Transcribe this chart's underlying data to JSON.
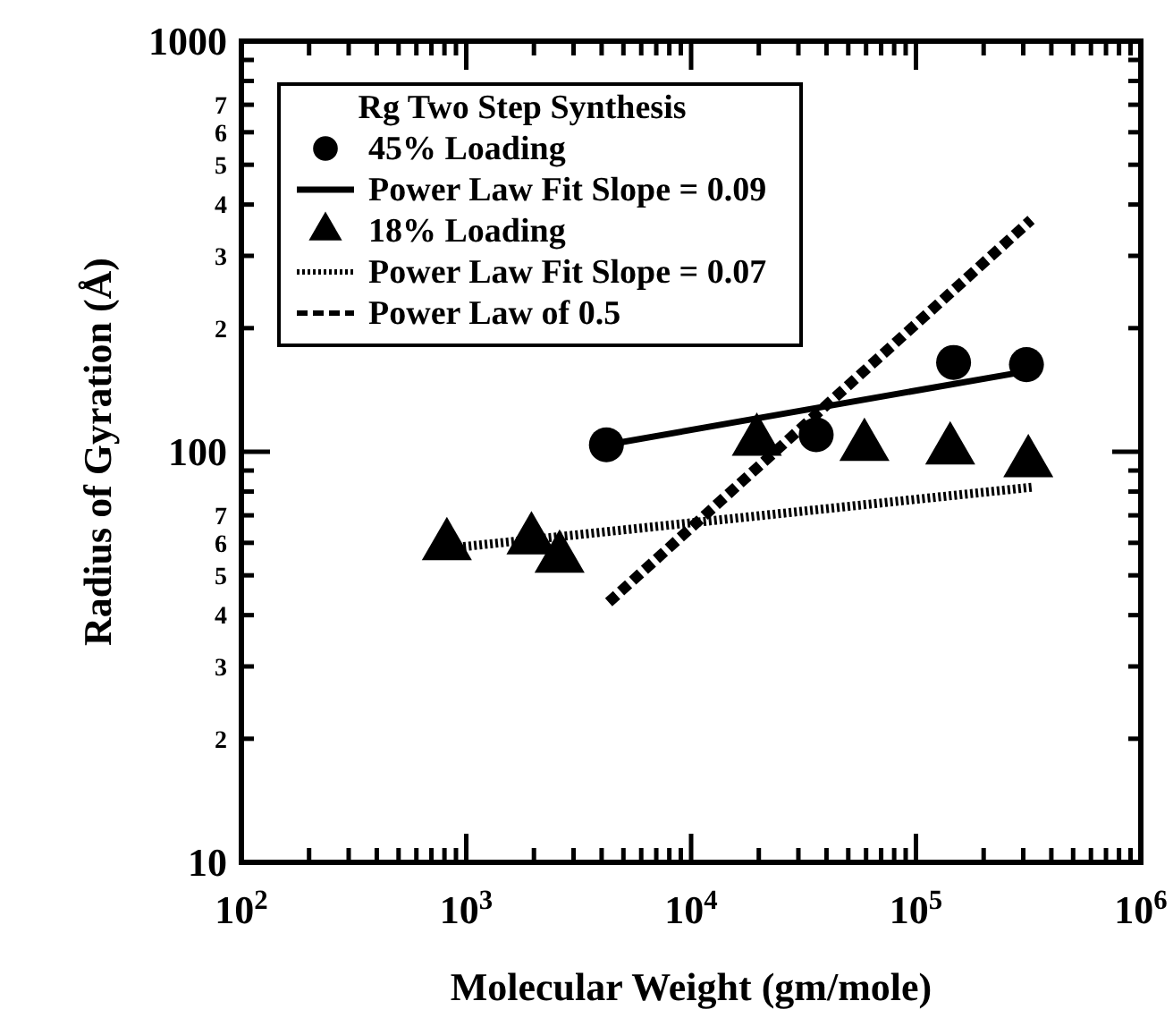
{
  "chart_data": {
    "type": "scatter",
    "xlabel": "Molecular Weight (gm/mole)",
    "ylabel": "Radius of Gyration (Å)",
    "legend_title": "Rg Two Step Synthesis",
    "log": "xy",
    "legend": "top left",
    "grid": false,
    "xlim": [
      100,
      1000000
    ],
    "ylim": [
      10,
      1000
    ],
    "xticks": [
      {
        "value": 100,
        "label": "10$^{2}$"
      },
      {
        "value": 200,
        "label": null
      },
      {
        "value": 300,
        "label": null
      },
      {
        "value": 400,
        "label": null
      },
      {
        "value": 500,
        "label": null
      },
      {
        "value": 600,
        "label": null
      },
      {
        "value": 700,
        "label": null
      },
      {
        "value": 800,
        "label": null
      },
      {
        "value": 900,
        "label": null
      },
      {
        "value": 1000,
        "label": "10$^{3}$"
      },
      {
        "value": 2000,
        "label": null
      },
      {
        "value": 3000,
        "label": null
      },
      {
        "value": 4000,
        "label": null
      },
      {
        "value": 5000,
        "label": null
      },
      {
        "value": 6000,
        "label": null
      },
      {
        "value": 7000,
        "label": null
      },
      {
        "value": 8000,
        "label": null
      },
      {
        "value": 9000,
        "label": null
      },
      {
        "value": 10000,
        "label": "10$^{4}$"
      },
      {
        "value": 20000,
        "label": null
      },
      {
        "value": 30000,
        "label": null
      },
      {
        "value": 40000,
        "label": null
      },
      {
        "value": 50000,
        "label": null
      },
      {
        "value": 60000,
        "label": null
      },
      {
        "value": 70000,
        "label": null
      },
      {
        "value": 80000,
        "label": null
      },
      {
        "value": 90000,
        "label": null
      },
      {
        "value": 100000,
        "label": "10$^{5}$"
      },
      {
        "value": 200000,
        "label": null
      },
      {
        "value": 300000,
        "label": null
      },
      {
        "value": 400000,
        "label": null
      },
      {
        "value": 500000,
        "label": null
      },
      {
        "value": 600000,
        "label": null
      },
      {
        "value": 700000,
        "label": null
      },
      {
        "value": 800000,
        "label": null
      },
      {
        "value": 900000,
        "label": null
      },
      {
        "value": 1000000,
        "label": "10$^{6}$"
      }
    ],
    "yticks": [
      10,
      {
        "value": 20,
        "label": null
      },
      {
        "value": 30,
        "label": null
      },
      {
        "value": 40,
        "label": null
      },
      {
        "value": 50,
        "label": null
      },
      {
        "value": 60,
        "label": null
      },
      {
        "value": 70,
        "label": null
      },
      {
        "value": 80,
        "label": null
      },
      {
        "value": 90,
        "label": null
      },
      100,
      {
        "value": 200,
        "label": null
      },
      {
        "value": 300,
        "label": null
      },
      {
        "value": 400,
        "label": null
      },
      {
        "value": 500,
        "label": null
      },
      {
        "value": 600,
        "label": null
      },
      {
        "value": 700,
        "label": null
      },
      {
        "value": 800,
        "label": null
      },
      {
        "value": 900,
        "label": null
      },
      1000
    ],
    "annotations": [
      "2",
      "3",
      "4",
      "5",
      "6",
      "7",
      "2",
      "3",
      "4",
      "5",
      "6",
      "7"
    ],
    "series": [
      {
        "name": "45% Loading",
        "marker": "circle",
        "color": "#000000",
        "x": [
          4200,
          36000,
          147000,
          310000
        ],
        "values": [
          104,
          110,
          165,
          163
        ]
      },
      {
        "name": "Power Law Fit Slope = 0.09",
        "type": "line",
        "line_style": "solid",
        "marker": "none",
        "color": "#000000",
        "x": [
          4200,
          310000
        ],
        "values": [
          104,
          157
        ]
      },
      {
        "name": "18% Loading",
        "marker": "triangle",
        "color": "#000000",
        "x": [
          820,
          1950,
          2600,
          19600,
          59000,
          142000,
          316000
        ],
        "values": [
          59,
          61,
          55,
          106,
          103,
          101,
          94
        ]
      },
      {
        "name": "Power Law Fit Slope = 0.07",
        "type": "line",
        "line_style": "dotted",
        "marker": "none",
        "color": "#000000",
        "x": [
          780,
          330000
        ],
        "values": [
          58,
          82
        ]
      },
      {
        "name": "Power Law of 0.5",
        "type": "line",
        "line_style": "dashed",
        "marker": "none",
        "color": "#000000",
        "x": [
          4300,
          325000
        ],
        "values": [
          43,
          367
        ]
      }
    ]
  }
}
